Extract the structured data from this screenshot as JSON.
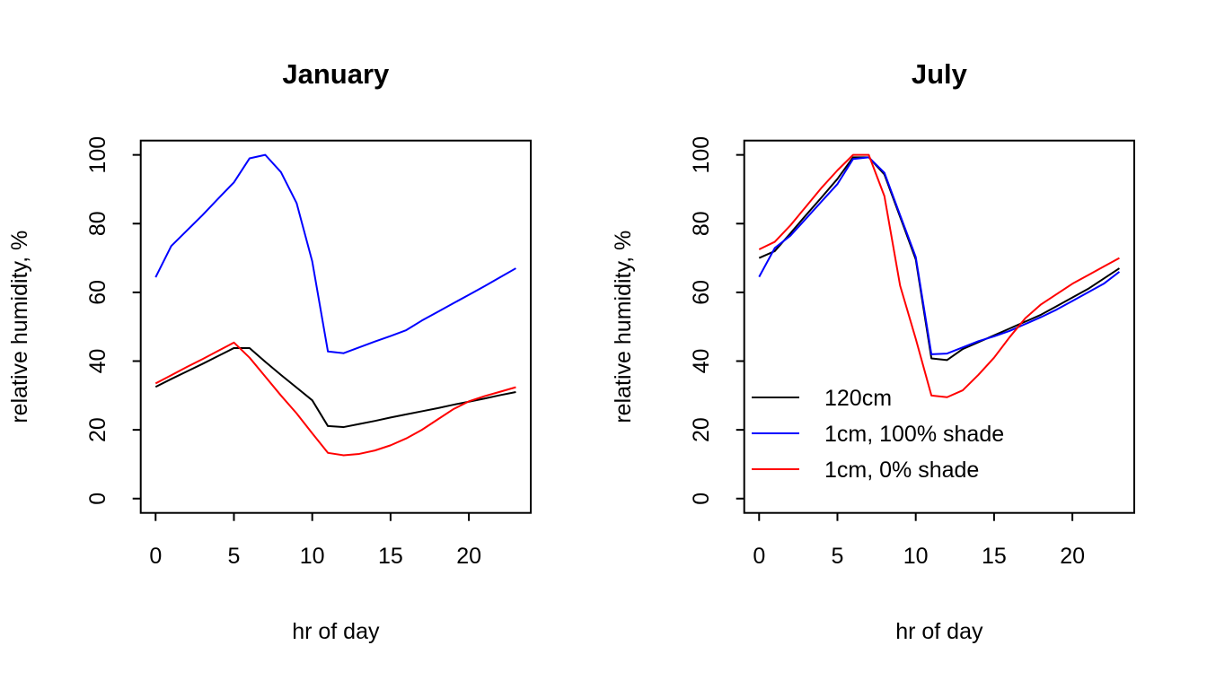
{
  "figure": {
    "background": "#ffffff",
    "axis_color": "#000000"
  },
  "legend": {
    "items": [
      {
        "label": "120cm",
        "color": "#000000"
      },
      {
        "label": "1cm, 100% shade",
        "color": "#0000ff"
      },
      {
        "label": "1cm, 0% shade",
        "color": "#ff0000"
      }
    ]
  },
  "chart_data": [
    {
      "type": "line",
      "title": "January",
      "xlabel": "hr of day",
      "ylabel": "relative humidity, %",
      "x": [
        0,
        1,
        2,
        3,
        4,
        5,
        6,
        7,
        8,
        9,
        10,
        11,
        12,
        13,
        14,
        15,
        16,
        17,
        18,
        19,
        20,
        21,
        22,
        23
      ],
      "x_ticks": [
        0,
        5,
        10,
        15,
        20
      ],
      "y_ticks": [
        0,
        20,
        40,
        60,
        80,
        100
      ],
      "xlim": [
        0,
        23
      ],
      "ylim": [
        0,
        100
      ],
      "grid": false,
      "legend": false,
      "series": [
        {
          "name": "120cm",
          "color": "#000000",
          "values": [
            32.5,
            34.8,
            37,
            39.2,
            41.5,
            43.8,
            43.8,
            39.8,
            36,
            32.3,
            28.6,
            21.1,
            20.8,
            21.7,
            22.6,
            23.6,
            24.5,
            25.4,
            26.3,
            27.3,
            28.2,
            29.1,
            30.1,
            31
          ]
        },
        {
          "name": "1cm, 100% shade",
          "color": "#0000ff",
          "values": [
            64.4,
            73.5,
            78,
            82.5,
            87.3,
            92,
            99,
            100,
            95,
            86,
            69,
            42.8,
            42.3,
            44,
            45.7,
            47.3,
            49,
            51.8,
            54.3,
            56.8,
            59.3,
            61.8,
            64.4,
            67
          ]
        },
        {
          "name": "1cm, 0% shade",
          "color": "#ff0000",
          "values": [
            33.5,
            35.9,
            38.3,
            40.6,
            43,
            45.4,
            41,
            35.5,
            30,
            24.8,
            19,
            13.3,
            12.6,
            13,
            14,
            15.5,
            17.5,
            20,
            23,
            26,
            28.3,
            29.8,
            31.1,
            32.4
          ]
        }
      ]
    },
    {
      "type": "line",
      "title": "July",
      "xlabel": "hr of day",
      "ylabel": "relative humidity, %",
      "x": [
        0,
        1,
        2,
        3,
        4,
        5,
        6,
        7,
        8,
        9,
        10,
        11,
        12,
        13,
        14,
        15,
        16,
        17,
        18,
        19,
        20,
        21,
        22,
        23
      ],
      "x_ticks": [
        0,
        5,
        10,
        15,
        20
      ],
      "y_ticks": [
        0,
        20,
        40,
        60,
        80,
        100
      ],
      "xlim": [
        0,
        23
      ],
      "ylim": [
        0,
        100
      ],
      "grid": false,
      "legend": true,
      "series": [
        {
          "name": "120cm",
          "color": "#000000",
          "values": [
            70,
            72,
            77.2,
            82.5,
            87.7,
            93,
            99.3,
            99.3,
            94.3,
            82,
            69.6,
            40.8,
            40.3,
            43.5,
            45.5,
            47.5,
            49.5,
            51.5,
            53.5,
            56,
            58.5,
            61,
            64,
            67
          ]
        },
        {
          "name": "1cm, 100% shade",
          "color": "#0000ff",
          "values": [
            64.5,
            72.9,
            76.5,
            81.5,
            86.5,
            91.5,
            98.8,
            99.3,
            94.8,
            82.5,
            70.3,
            42,
            42.2,
            44,
            45.8,
            47.2,
            48.8,
            50.8,
            52.8,
            55,
            57.5,
            60,
            62.5,
            66
          ]
        },
        {
          "name": "1cm, 0% shade",
          "color": "#ff0000",
          "values": [
            72.5,
            74.7,
            79.5,
            85,
            90.5,
            95.5,
            100,
            100,
            88,
            62,
            46.5,
            30,
            29.5,
            31.5,
            36,
            41,
            47,
            52.5,
            56.5,
            59.5,
            62.5,
            65,
            67.5,
            70
          ]
        }
      ]
    }
  ]
}
